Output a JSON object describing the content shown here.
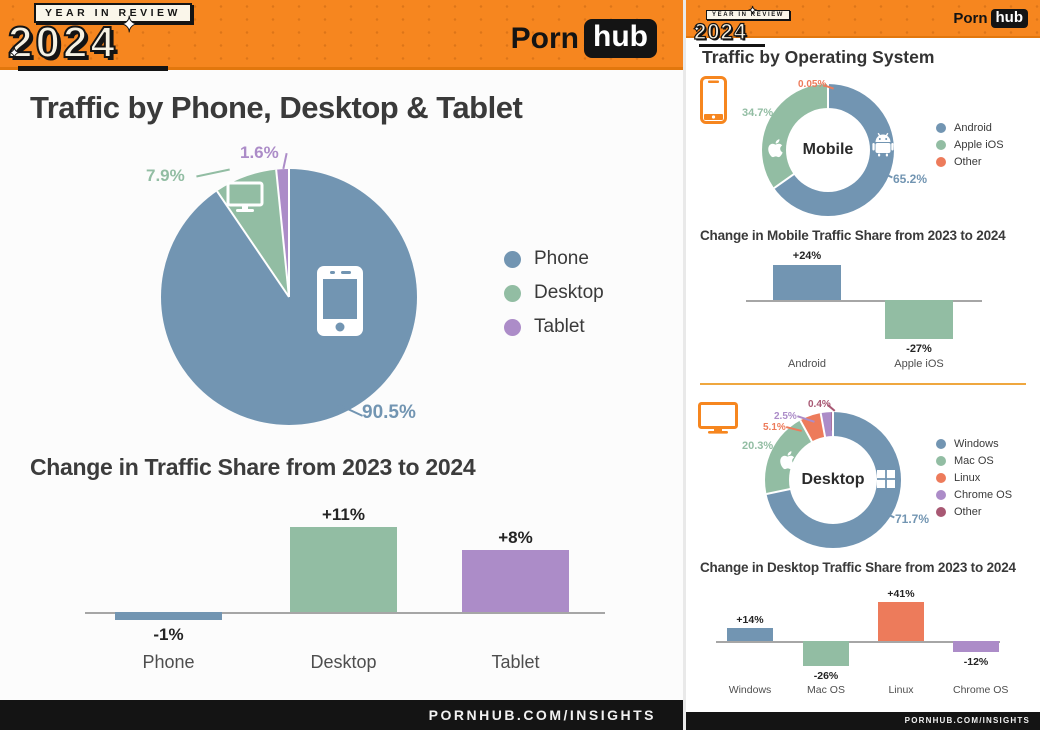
{
  "palette": {
    "orange": "#F6861F",
    "header_border": "#E2770D",
    "blue": "#7295B2",
    "green": "#92BDA3",
    "purple": "#AC8CC8",
    "coral": "#ED7B5B",
    "maroon": "#A85873",
    "black": "#141414",
    "title_text": "#3A3A3A",
    "divider_orange": "#EFA73F"
  },
  "left_panel": {
    "header": {
      "badge": "YEAR IN REVIEW",
      "year": "2024",
      "brand_porn": "Porn",
      "brand_hub": "hub",
      "sparkle": "✦"
    },
    "footer": "PORNHUB.COM/INSIGHTS"
  },
  "right_panel": {
    "header": {
      "badge": "YEAR IN REVIEW",
      "year": "2024",
      "brand_porn": "Porn",
      "brand_hub": "hub",
      "sparkle": "✦"
    },
    "title": "Traffic by Operating System",
    "footer": "PORNHUB.COM/INSIGHTS"
  },
  "chart_data": [
    {
      "id": "device_traffic_share",
      "type": "pie",
      "title": "Traffic by Phone, Desktop & Tablet",
      "labels": [
        "Phone",
        "Desktop",
        "Tablet"
      ],
      "values": [
        90.5,
        7.9,
        1.6
      ],
      "value_labels": [
        "90.5%",
        "7.9%",
        "1.6%"
      ],
      "colors": [
        "#7295B2",
        "#92BDA3",
        "#AC8CC8"
      ],
      "legend_position": "right",
      "start_angle": "top",
      "direction": "clockwise"
    },
    {
      "id": "device_traffic_change",
      "type": "bar",
      "title": "Change in Traffic Share from 2023 to 2024",
      "categories": [
        "Phone",
        "Desktop",
        "Tablet"
      ],
      "values": [
        -1,
        11,
        8
      ],
      "value_labels": [
        "-1%",
        "+11%",
        "+8%"
      ],
      "colors": [
        "#7295B2",
        "#92BDA3",
        "#AC8CC8"
      ],
      "ylim": [
        -5,
        14
      ],
      "baseline": 0,
      "grid": false
    },
    {
      "id": "mobile_os_share",
      "type": "donut",
      "center_label": "Mobile",
      "labels": [
        "Android",
        "Apple iOS",
        "Other"
      ],
      "values": [
        65.2,
        34.7,
        0.05
      ],
      "value_labels": [
        "65.2%",
        "34.7%",
        "0.05%"
      ],
      "colors": [
        "#7295B2",
        "#92BDA3",
        "#ED7B5B"
      ],
      "legend_position": "right",
      "start_angle": "top",
      "direction": "clockwise"
    },
    {
      "id": "mobile_os_change",
      "type": "bar",
      "title": "Change in Mobile Traffic Share from 2023 to 2024",
      "categories": [
        "Android",
        "Apple iOS"
      ],
      "values": [
        24,
        -27
      ],
      "value_labels": [
        "+24%",
        "-27%"
      ],
      "colors": [
        "#7295B2",
        "#92BDA3"
      ],
      "ylim": [
        -30,
        30
      ],
      "baseline": 0,
      "grid": false
    },
    {
      "id": "desktop_os_share",
      "type": "donut",
      "center_label": "Desktop",
      "labels": [
        "Windows",
        "Mac OS",
        "Linux",
        "Chrome OS",
        "Other"
      ],
      "values": [
        71.7,
        20.3,
        5.1,
        2.5,
        0.4
      ],
      "value_labels": [
        "71.7%",
        "20.3%",
        "5.1%",
        "2.5%",
        "0.4%"
      ],
      "colors": [
        "#7295B2",
        "#92BDA3",
        "#ED7B5B",
        "#AC8CC8",
        "#A85873"
      ],
      "legend_position": "right",
      "start_angle": "top",
      "direction": "clockwise"
    },
    {
      "id": "desktop_os_change",
      "type": "bar",
      "title": "Change in Desktop Traffic Share from 2023 to 2024",
      "categories": [
        "Windows",
        "Mac OS",
        "Linux",
        "Chrome OS"
      ],
      "values": [
        14,
        -26,
        41,
        -12
      ],
      "value_labels": [
        "+14%",
        "-26%",
        "+41%",
        "-12%"
      ],
      "colors": [
        "#7295B2",
        "#92BDA3",
        "#ED7B5B",
        "#AC8CC8"
      ],
      "ylim": [
        -30,
        45
      ],
      "baseline": 0,
      "grid": false
    }
  ],
  "icons": [
    "smartphone-icon",
    "desktop-monitor-icon",
    "apple-logo-icon",
    "android-robot-icon",
    "windows-logo-icon",
    "sparkle-icon"
  ]
}
